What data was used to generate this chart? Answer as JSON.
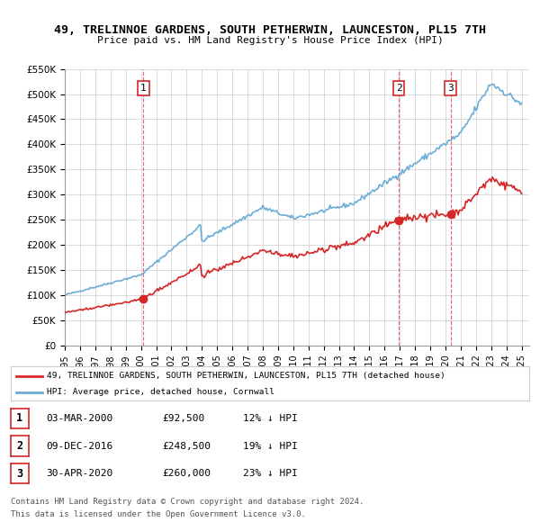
{
  "title": "49, TRELINNOE GARDENS, SOUTH PETHERWIN, LAUNCESTON, PL15 7TH",
  "subtitle": "Price paid vs. HM Land Registry's House Price Index (HPI)",
  "ylim": [
    0,
    550000
  ],
  "yticks": [
    0,
    50000,
    100000,
    150000,
    200000,
    250000,
    300000,
    350000,
    400000,
    450000,
    500000,
    550000
  ],
  "ytick_labels": [
    "£0",
    "£50K",
    "£100K",
    "£150K",
    "£200K",
    "£250K",
    "£300K",
    "£350K",
    "£400K",
    "£450K",
    "£500K",
    "£550K"
  ],
  "sale_dates": [
    2000.17,
    2016.93,
    2020.33
  ],
  "sale_prices": [
    92500,
    248500,
    260000
  ],
  "sale_labels": [
    "1",
    "2",
    "3"
  ],
  "legend_property": "49, TRELINNOE GARDENS, SOUTH PETHERWIN, LAUNCESTON, PL15 7TH (detached house)",
  "legend_hpi": "HPI: Average price, detached house, Cornwall",
  "table_rows": [
    [
      "1",
      "03-MAR-2000",
      "£92,500",
      "12% ↓ HPI"
    ],
    [
      "2",
      "09-DEC-2016",
      "£248,500",
      "19% ↓ HPI"
    ],
    [
      "3",
      "30-APR-2020",
      "£260,000",
      "23% ↓ HPI"
    ]
  ],
  "footnote1": "Contains HM Land Registry data © Crown copyright and database right 2024.",
  "footnote2": "This data is licensed under the Open Government Licence v3.0.",
  "hpi_color": "#6baed6",
  "property_color": "#d62728",
  "background_color": "#ffffff",
  "grid_color": "#cccccc"
}
